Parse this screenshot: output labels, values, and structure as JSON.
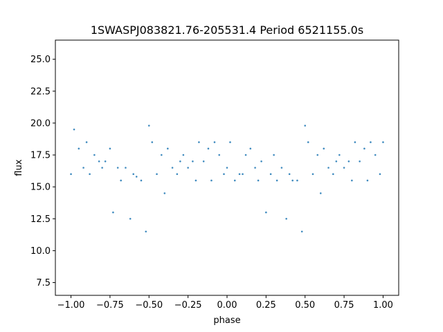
{
  "chart_data": {
    "type": "scatter",
    "title": "1SWASPJ083821.76-205531.4 Period 6521155.0s",
    "xlabel": "phase",
    "ylabel": "flux",
    "xlim": [
      -1.1,
      1.1
    ],
    "ylim": [
      6.5,
      26.5
    ],
    "xticks": [
      -1.0,
      -0.75,
      -0.5,
      -0.25,
      0.0,
      0.25,
      0.5,
      0.75,
      1.0
    ],
    "xtick_labels": [
      "−1.00",
      "−0.75",
      "−0.50",
      "−0.25",
      "0.00",
      "0.25",
      "0.50",
      "0.75",
      "1.00"
    ],
    "yticks": [
      7.5,
      10.0,
      12.5,
      15.0,
      17.5,
      20.0,
      22.5,
      25.0
    ],
    "ytick_labels": [
      "7.5",
      "10.0",
      "12.5",
      "15.0",
      "17.5",
      "20.0",
      "22.5",
      "25.0"
    ],
    "grid": false,
    "marker_color": "#1f77b4",
    "series": [
      {
        "x": [
          -1.0,
          -0.98,
          -0.95,
          -0.92,
          -0.9,
          -0.88,
          -0.85,
          -0.82,
          -0.8,
          -0.78,
          -0.75,
          -0.73,
          -0.7,
          -0.68,
          -0.65,
          -0.62,
          -0.6,
          -0.58,
          -0.55,
          -0.52,
          -0.5,
          -0.48,
          -0.45,
          -0.42,
          -0.4,
          -0.38,
          -0.35,
          -0.32,
          -0.3,
          -0.28,
          -0.25,
          -0.22,
          -0.2,
          -0.18,
          -0.15,
          -0.12,
          -0.1,
          -0.08,
          -0.05,
          -0.02,
          0.0,
          0.02,
          0.05,
          0.08,
          0.1,
          0.12,
          0.15,
          0.18,
          0.2,
          0.22,
          0.25,
          0.28,
          0.3,
          0.32,
          0.35,
          0.38,
          0.4,
          0.42,
          0.45,
          0.48,
          0.5,
          0.52,
          0.55,
          0.58,
          0.6,
          0.62,
          0.65,
          0.68,
          0.7,
          0.72,
          0.75,
          0.78,
          0.8,
          0.82,
          0.85,
          0.88,
          0.9,
          0.92,
          0.95,
          0.98,
          1.0
        ],
        "y": [
          16.0,
          19.5,
          18.0,
          16.5,
          18.5,
          16.0,
          17.5,
          17.0,
          16.5,
          17.0,
          18.0,
          13.0,
          16.5,
          15.5,
          16.5,
          12.5,
          16.0,
          15.8,
          15.5,
          11.5,
          19.8,
          18.5,
          16.0,
          17.5,
          14.5,
          18.0,
          16.5,
          16.0,
          17.0,
          17.5,
          16.5,
          17.0,
          15.5,
          18.5,
          17.0,
          18.0,
          15.5,
          18.5,
          17.5,
          16.0,
          16.5,
          18.5,
          15.5,
          16.0,
          16.0,
          17.5,
          18.0,
          16.5,
          15.5,
          17.0,
          13.0,
          16.0,
          17.5,
          15.5,
          16.5,
          12.5,
          16.0,
          15.5,
          15.5,
          11.5,
          19.8,
          18.5,
          16.0,
          17.5,
          14.5,
          18.0,
          16.5,
          16.0,
          17.0,
          17.5,
          16.5,
          17.0,
          15.5,
          18.5,
          17.0,
          18.0,
          15.5,
          18.5,
          17.5,
          16.0,
          18.5
        ]
      }
    ]
  }
}
